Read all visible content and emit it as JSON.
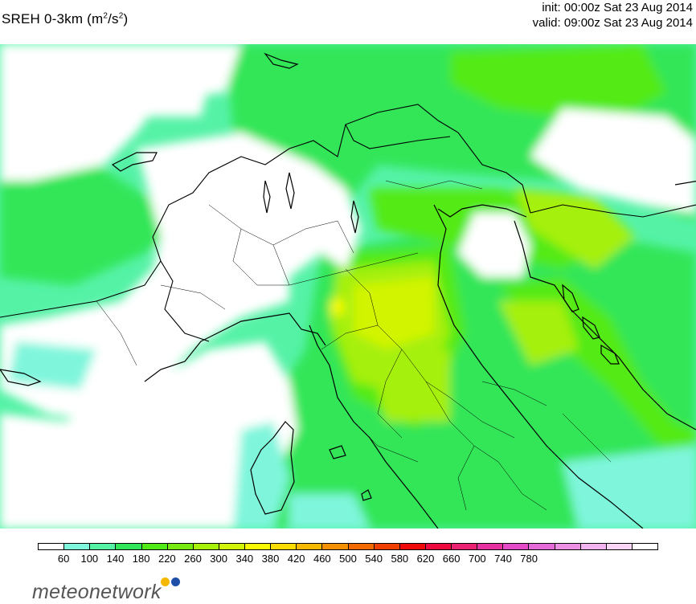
{
  "header": {
    "title_main": "SREH 0-3km (m",
    "title_sup1": "2",
    "title_mid": "/s",
    "title_sup2": "2",
    "title_end": ")",
    "init": "init: 00:00z Sat 23 Aug 2014",
    "valid": "valid: 09:00z Sat 23 Aug 2014"
  },
  "legend": {
    "colors": [
      "#ffffff",
      "#7ff6dc",
      "#55f2a6",
      "#32e659",
      "#52ea16",
      "#76ea10",
      "#a6f00a",
      "#d2f406",
      "#f8fa00",
      "#fadc00",
      "#f7b800",
      "#f59100",
      "#f36b00",
      "#f04000",
      "#ee0a08",
      "#ec0a3e",
      "#ea2272",
      "#e632a0",
      "#e24ac6",
      "#e46ad8",
      "#ec90e4",
      "#f2b4ee",
      "#fad6f6",
      "#ffffff"
    ],
    "ticks": [
      "60",
      "100",
      "140",
      "180",
      "220",
      "260",
      "300",
      "340",
      "380",
      "420",
      "460",
      "500",
      "540",
      "580",
      "620",
      "660",
      "700",
      "740",
      "780"
    ]
  },
  "logo": {
    "text": "meteonetwork",
    "dot_colors": [
      "#f5b800",
      "#1f4ea8"
    ]
  }
}
